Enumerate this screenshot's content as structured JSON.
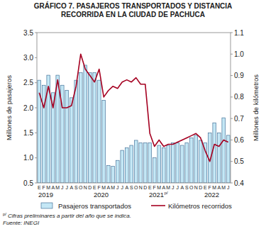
{
  "chart_data": {
    "type": "bar",
    "title": "GRÁFICO 7. PASAJEROS TRANSPORTADOS Y DISTANCIA RECORRIDA EN LA CIUDAD DE PACHUCA",
    "categories": [
      "E",
      "F",
      "M",
      "A",
      "M",
      "J",
      "J",
      "A",
      "S",
      "O",
      "N",
      "D",
      "E",
      "F",
      "M",
      "A",
      "M",
      "J",
      "J",
      "A",
      "S",
      "O",
      "N",
      "D",
      "E",
      "F",
      "M",
      "A",
      "M",
      "J",
      "J",
      "A",
      "S",
      "O",
      "N",
      "D",
      "E",
      "F",
      "M",
      "A",
      "M",
      "J"
    ],
    "x_groups": [
      {
        "label": "2019",
        "count": 12
      },
      {
        "label": "2020",
        "count": 12
      },
      {
        "label": "2021",
        "note_mark": "p/",
        "count": 12
      },
      {
        "label": "2022",
        "count": 6
      }
    ],
    "y_label": "Millones de pasajeros",
    "y2_label": "Millones de kilómetros",
    "ylim": [
      0.5,
      3.5
    ],
    "yticks": [
      0.5,
      {
        "value": 1,
        "label": "1.0"
      },
      1.5,
      {
        "value": 2,
        "label": "2.0"
      },
      2.5,
      {
        "value": 3,
        "label": "3.0"
      },
      3.5
    ],
    "y2lim": [
      0.4,
      1.1
    ],
    "y2ticks": [
      0.4,
      0.5,
      0.6,
      0.7,
      0.8,
      0.9,
      {
        "value": 1,
        "label": "1.0"
      },
      1.1
    ],
    "grid": false,
    "legend": "bottom",
    "series": [
      {
        "name": "Pasajeros transportados",
        "type": "bar",
        "color": "#c4e7f5",
        "values": [
          2.55,
          2.45,
          2.65,
          2.3,
          2.65,
          2.45,
          2.35,
          2.2,
          2.55,
          2.7,
          2.85,
          2.7,
          2.7,
          2.55,
          2.15,
          0.85,
          0.83,
          0.95,
          1.15,
          1.2,
          1.25,
          1.35,
          1.3,
          1.3,
          1.3,
          1.0,
          1.25,
          1.2,
          1.25,
          1.3,
          1.3,
          1.25,
          1.3,
          1.4,
          1.45,
          1.35,
          1.3,
          1.5,
          1.7,
          1.5,
          1.8,
          1.45
        ]
      },
      {
        "name": "Kilómetros recorridos",
        "type": "line",
        "axis": "y2",
        "color": "#a50021",
        "values": [
          0.82,
          0.75,
          0.85,
          0.75,
          0.88,
          0.75,
          0.75,
          0.76,
          0.85,
          1.0,
          0.93,
          0.9,
          0.87,
          0.93,
          0.8,
          0.83,
          0.85,
          0.84,
          0.87,
          0.88,
          0.87,
          0.89,
          0.86,
          0.86,
          0.63,
          0.57,
          0.6,
          0.57,
          0.58,
          0.58,
          0.59,
          0.6,
          0.61,
          0.62,
          0.63,
          0.61,
          0.55,
          0.5,
          0.58,
          0.57,
          0.6,
          0.59
        ]
      }
    ],
    "notes": [
      {
        "mark": "p/",
        "text": "Cifras preliminares a partir del año que se indica."
      }
    ],
    "source": "Fuente: INEGI"
  }
}
